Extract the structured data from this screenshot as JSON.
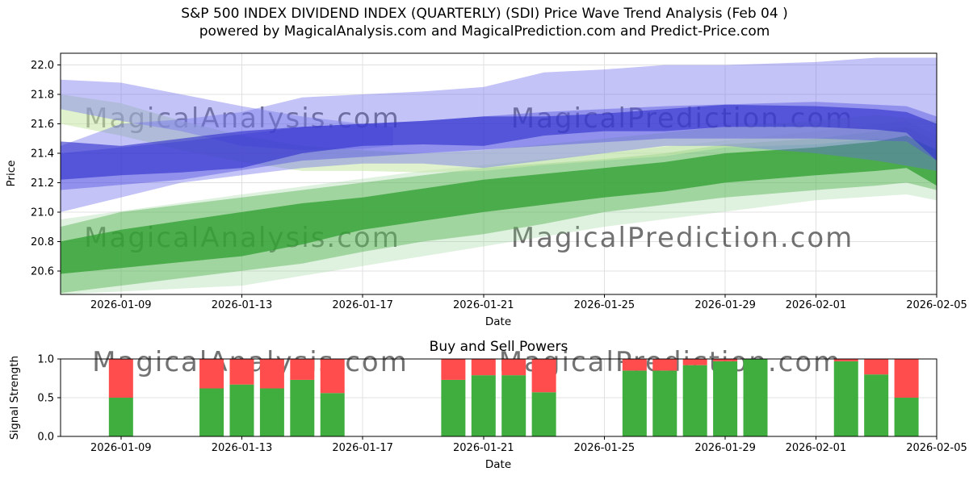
{
  "header": {
    "title_line1": "S&P 500 INDEX DIVIDEND INDEX (QUARTERLY) (SDI) Price Wave Trend Analysis (Feb 04 )",
    "title_line2": "powered by MagicalAnalysis.com and MagicalPrediction.com and Predict-Price.com"
  },
  "watermarks": [
    "MagicalAnalysis.com",
    "MagicalPrediction.com"
  ],
  "chart_data": [
    {
      "type": "area",
      "title": "",
      "xlabel": "Date",
      "ylabel": "Price",
      "ylim": [
        20.44,
        22.08
      ],
      "y_ticks": [
        20.6,
        20.8,
        21.0,
        21.2,
        21.4,
        21.6,
        21.8,
        22.0
      ],
      "x_domain": [
        "2026-01-07",
        "2026-02-05"
      ],
      "x_ticks": [
        "2026-01-09",
        "2026-01-13",
        "2026-01-17",
        "2026-01-21",
        "2026-01-25",
        "2026-01-29",
        "2026-02-01",
        "2026-02-05"
      ],
      "grid": true,
      "legend": "none",
      "bands": [
        {
          "name": "green-fan-pale",
          "color": "#7ec87e",
          "opacity": 0.25,
          "points": [
            [
              "2026-01-07",
              20.44,
              20.95
            ],
            [
              "2026-01-13",
              20.5,
              21.12
            ],
            [
              "2026-01-19",
              20.7,
              21.28
            ],
            [
              "2026-01-25",
              20.9,
              21.4
            ],
            [
              "2026-02-01",
              21.08,
              21.55
            ],
            [
              "2026-02-04",
              21.12,
              21.62
            ],
            [
              "2026-02-05",
              21.08,
              21.52
            ]
          ]
        },
        {
          "name": "green-outer",
          "color": "#55b455",
          "opacity": 0.45,
          "points": [
            [
              "2026-01-07",
              20.45,
              20.9
            ],
            [
              "2026-01-09",
              20.5,
              21.0
            ],
            [
              "2026-01-11",
              20.55,
              21.05
            ],
            [
              "2026-01-13",
              20.6,
              21.1
            ],
            [
              "2026-01-15",
              20.65,
              21.15
            ],
            [
              "2026-01-17",
              20.73,
              21.2
            ],
            [
              "2026-01-19",
              20.8,
              21.25
            ],
            [
              "2026-01-21",
              20.85,
              21.3
            ],
            [
              "2026-01-23",
              20.92,
              21.33
            ],
            [
              "2026-01-25",
              21.0,
              21.36
            ],
            [
              "2026-01-27",
              21.05,
              21.4
            ],
            [
              "2026-01-29",
              21.1,
              21.46
            ],
            [
              "2026-02-01",
              21.15,
              21.5
            ],
            [
              "2026-02-03",
              21.18,
              21.55
            ],
            [
              "2026-02-04",
              21.2,
              21.58
            ],
            [
              "2026-02-05",
              21.15,
              21.48
            ]
          ]
        },
        {
          "name": "green-desc-pale",
          "color": "#c9e8ab",
          "opacity": 0.6,
          "points": [
            [
              "2026-01-07",
              21.6,
              21.8
            ],
            [
              "2026-01-09",
              21.52,
              21.74
            ],
            [
              "2026-01-11",
              21.42,
              21.62
            ],
            [
              "2026-01-13",
              21.34,
              21.52
            ],
            [
              "2026-01-15",
              21.28,
              21.45
            ],
            [
              "2026-01-17",
              21.28,
              21.42
            ],
            [
              "2026-01-19",
              21.27,
              21.4
            ],
            [
              "2026-01-21",
              21.28,
              21.42
            ],
            [
              "2026-01-23",
              21.32,
              21.46
            ],
            [
              "2026-01-25",
              21.35,
              21.5
            ],
            [
              "2026-01-27",
              21.38,
              21.54
            ],
            [
              "2026-01-29",
              21.44,
              21.58
            ],
            [
              "2026-02-01",
              21.46,
              21.62
            ],
            [
              "2026-02-03",
              21.5,
              21.66
            ],
            [
              "2026-02-05",
              21.44,
              21.62
            ]
          ]
        },
        {
          "name": "green-core",
          "color": "#2f9e2f",
          "opacity": 0.75,
          "points": [
            [
              "2026-01-07",
              20.58,
              20.8
            ],
            [
              "2026-01-09",
              20.62,
              20.88
            ],
            [
              "2026-01-11",
              20.66,
              20.94
            ],
            [
              "2026-01-13",
              20.7,
              21.0
            ],
            [
              "2026-01-15",
              20.78,
              21.06
            ],
            [
              "2026-01-17",
              20.88,
              21.1
            ],
            [
              "2026-01-19",
              20.94,
              21.16
            ],
            [
              "2026-01-21",
              21.0,
              21.22
            ],
            [
              "2026-01-23",
              21.05,
              21.26
            ],
            [
              "2026-01-25",
              21.1,
              21.3
            ],
            [
              "2026-01-27",
              21.14,
              21.34
            ],
            [
              "2026-01-29",
              21.2,
              21.4
            ],
            [
              "2026-02-01",
              21.25,
              21.44
            ],
            [
              "2026-02-03",
              21.28,
              21.48
            ],
            [
              "2026-02-04",
              21.3,
              21.52
            ],
            [
              "2026-02-05",
              21.18,
              21.42
            ]
          ]
        },
        {
          "name": "blue-outer",
          "color": "#6a6aec",
          "opacity": 0.4,
          "points": [
            [
              "2026-01-07",
              21.0,
              21.45
            ],
            [
              "2026-01-09",
              21.1,
              21.6
            ],
            [
              "2026-01-11",
              21.2,
              21.63
            ],
            [
              "2026-01-13",
              21.25,
              21.68
            ],
            [
              "2026-01-15",
              21.3,
              21.78
            ],
            [
              "2026-01-17",
              21.33,
              21.8
            ],
            [
              "2026-01-19",
              21.33,
              21.82
            ],
            [
              "2026-01-21",
              21.3,
              21.85
            ],
            [
              "2026-01-23",
              21.35,
              21.95
            ],
            [
              "2026-01-25",
              21.4,
              21.97
            ],
            [
              "2026-01-27",
              21.45,
              22.0
            ],
            [
              "2026-01-29",
              21.45,
              22.0
            ],
            [
              "2026-02-01",
              21.4,
              22.02
            ],
            [
              "2026-02-03",
              21.35,
              22.05
            ],
            [
              "2026-02-05",
              21.28,
              22.05
            ]
          ]
        },
        {
          "name": "blue-desc",
          "color": "#7a7aee",
          "opacity": 0.45,
          "points": [
            [
              "2026-01-07",
              21.7,
              21.9
            ],
            [
              "2026-01-09",
              21.62,
              21.88
            ],
            [
              "2026-01-11",
              21.55,
              21.8
            ],
            [
              "2026-01-13",
              21.45,
              21.72
            ],
            [
              "2026-01-15",
              21.42,
              21.65
            ],
            [
              "2026-01-17",
              21.43,
              21.6
            ],
            [
              "2026-01-18",
              21.45,
              21.58
            ]
          ]
        },
        {
          "name": "blue-mid",
          "color": "#5555e0",
          "opacity": 0.45,
          "points": [
            [
              "2026-01-07",
              21.15,
              21.4
            ],
            [
              "2026-01-11",
              21.22,
              21.48
            ],
            [
              "2026-01-15",
              21.35,
              21.58
            ],
            [
              "2026-01-19",
              21.4,
              21.62
            ],
            [
              "2026-01-23",
              21.45,
              21.68
            ],
            [
              "2026-01-27",
              21.5,
              21.72
            ],
            [
              "2026-02-01",
              21.5,
              21.75
            ],
            [
              "2026-02-04",
              21.48,
              21.72
            ],
            [
              "2026-02-05",
              21.35,
              21.65
            ]
          ]
        },
        {
          "name": "blue-core",
          "color": "#2d2dcc",
          "opacity": 0.6,
          "points": [
            [
              "2026-01-07",
              21.22,
              21.48
            ],
            [
              "2026-01-09",
              21.25,
              21.45
            ],
            [
              "2026-01-11",
              21.27,
              21.5
            ],
            [
              "2026-01-13",
              21.3,
              21.55
            ],
            [
              "2026-01-15",
              21.4,
              21.58
            ],
            [
              "2026-01-17",
              21.45,
              21.6
            ],
            [
              "2026-01-19",
              21.46,
              21.62
            ],
            [
              "2026-01-21",
              21.45,
              21.65
            ],
            [
              "2026-01-23",
              21.52,
              21.65
            ],
            [
              "2026-01-25",
              21.55,
              21.67
            ],
            [
              "2026-01-27",
              21.55,
              21.7
            ],
            [
              "2026-01-29",
              21.58,
              21.73
            ],
            [
              "2026-02-01",
              21.58,
              21.72
            ],
            [
              "2026-02-03",
              21.56,
              21.7
            ],
            [
              "2026-02-04",
              21.54,
              21.68
            ],
            [
              "2026-02-05",
              21.35,
              21.6
            ]
          ]
        }
      ]
    },
    {
      "type": "bar",
      "title": "Buy and Sell Powers",
      "xlabel": "Date",
      "ylabel": "Signal Strength",
      "ylim": [
        0,
        1.0
      ],
      "y_ticks": [
        0.0,
        0.5,
        1.0
      ],
      "x_domain": [
        "2026-01-07",
        "2026-02-05"
      ],
      "x_ticks": [
        "2026-01-09",
        "2026-01-13",
        "2026-01-17",
        "2026-01-21",
        "2026-01-25",
        "2026-01-29",
        "2026-02-01",
        "2026-02-05"
      ],
      "grid": true,
      "stacked": true,
      "series": [
        {
          "name": "Buy",
          "color": "#3fae3f"
        },
        {
          "name": "Sell",
          "color": "#ff4d4d"
        }
      ],
      "bars": [
        [
          "2026-01-09",
          0.5,
          0.5
        ],
        [
          "2026-01-12",
          0.62,
          0.38
        ],
        [
          "2026-01-13",
          0.67,
          0.33
        ],
        [
          "2026-01-14",
          0.62,
          0.38
        ],
        [
          "2026-01-15",
          0.73,
          0.27
        ],
        [
          "2026-01-16",
          0.56,
          0.44
        ],
        [
          "2026-01-20",
          0.73,
          0.27
        ],
        [
          "2026-01-21",
          0.79,
          0.21
        ],
        [
          "2026-01-22",
          0.79,
          0.21
        ],
        [
          "2026-01-23",
          0.57,
          0.43
        ],
        [
          "2026-01-26",
          0.85,
          0.15
        ],
        [
          "2026-01-27",
          0.85,
          0.15
        ],
        [
          "2026-01-28",
          0.92,
          0.08
        ],
        [
          "2026-01-29",
          0.97,
          0.03
        ],
        [
          "2026-01-30",
          1.0,
          0.0
        ],
        [
          "2026-02-02",
          0.97,
          0.03
        ],
        [
          "2026-02-03",
          0.8,
          0.2
        ],
        [
          "2026-02-04",
          0.5,
          0.5
        ]
      ]
    }
  ]
}
